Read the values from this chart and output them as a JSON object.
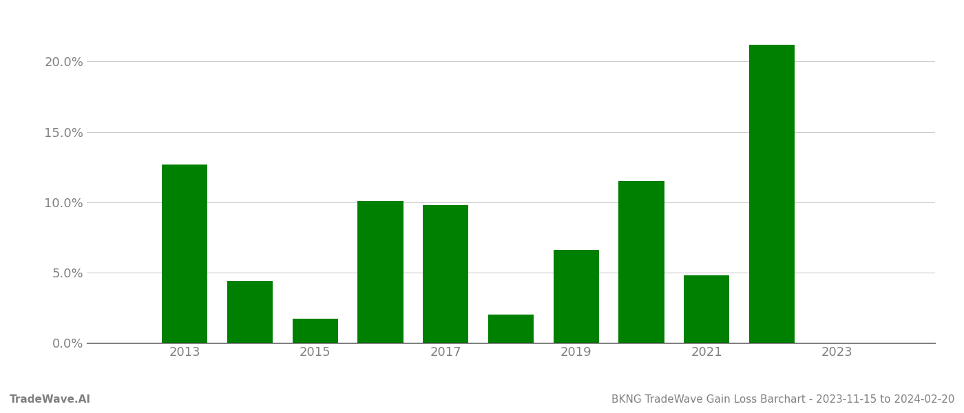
{
  "years": [
    2013,
    2014,
    2015,
    2016,
    2017,
    2018,
    2019,
    2020,
    2021,
    2022,
    2023
  ],
  "values": [
    0.127,
    0.044,
    0.017,
    0.101,
    0.098,
    0.02,
    0.066,
    0.115,
    0.048,
    0.212,
    0.0
  ],
  "bar_color": "#008000",
  "background_color": "#ffffff",
  "grid_color": "#cccccc",
  "axis_label_color": "#808080",
  "tick_label_color": "#808080",
  "ylim": [
    0,
    0.235
  ],
  "yticks": [
    0.0,
    0.05,
    0.1,
    0.15,
    0.2
  ],
  "xtick_labels": [
    "2013",
    "2015",
    "2017",
    "2019",
    "2021",
    "2023"
  ],
  "xtick_positions": [
    2013,
    2015,
    2017,
    2019,
    2021,
    2023
  ],
  "xlim": [
    2011.5,
    2024.5
  ],
  "footer_left": "TradeWave.AI",
  "footer_right": "BKNG TradeWave Gain Loss Barchart - 2023-11-15 to 2024-02-20",
  "footer_color": "#808080",
  "footer_fontsize": 11,
  "tick_fontsize": 13,
  "bar_width": 0.7
}
